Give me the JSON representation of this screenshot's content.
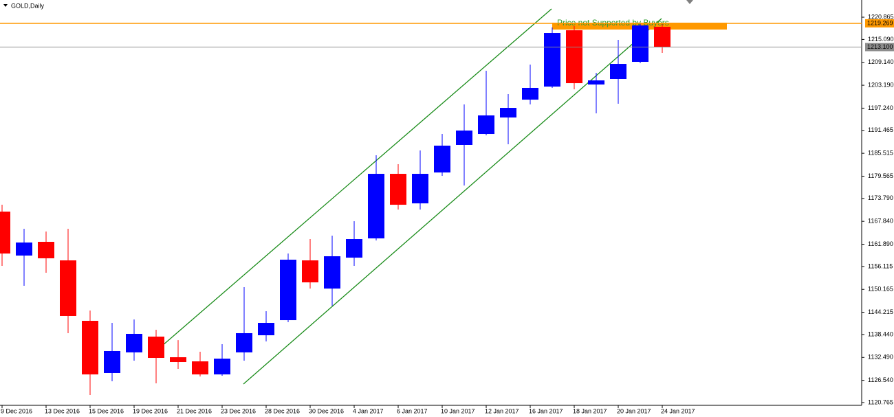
{
  "chart_data": {
    "type": "candlestick",
    "title": "GOLD,Daily",
    "annotation": "Price not Supported by Buyers",
    "categories": [
      "9 Dec 2016",
      null,
      "13 Dec 2016",
      null,
      "15 Dec 2016",
      null,
      "19 Dec 2016",
      null,
      "21 Dec 2016",
      null,
      "23 Dec 2016",
      null,
      "28 Dec 2016",
      null,
      "30 Dec 2016",
      null,
      "4 Jan 2017",
      null,
      "6 Jan 2017",
      null,
      "10 Jan 2017",
      null,
      "12 Jan 2017",
      null,
      "16 Jan 2017",
      null,
      "18 Jan 2017",
      null,
      "20 Jan 2017",
      null,
      "24 Jan 2017"
    ],
    "open": [
      1170.37,
      1158.95,
      1162.52,
      1157.7,
      1142.0,
      1128.44,
      1133.8,
      1137.9,
      1132.54,
      1131.47,
      1128.08,
      1133.8,
      1138.25,
      1142.17,
      1157.7,
      1150.38,
      1158.41,
      1163.41,
      1180.18,
      1172.51,
      1180.53,
      1187.68,
      1190.53,
      1194.81,
      1199.45,
      1202.84,
      1217.47,
      1203.38,
      1204.81,
      1209.27,
      1218.37
    ],
    "high": [
      1172.15,
      1165.91,
      1165.19,
      1165.91,
      1144.68,
      1141.46,
      1142.35,
      1139.68,
      1136.99,
      1133.97,
      1135.93,
      1150.74,
      1144.5,
      1159.48,
      1163.23,
      1164.12,
      1167.87,
      1185.0,
      1182.68,
      1186.25,
      1190.53,
      1198.2,
      1206.95,
      1200.88,
      1208.55,
      1218.19,
      1218.54,
      1206.41,
      1214.98,
      1219.26,
      1219.26
    ],
    "low": [
      1156.27,
      1151.1,
      1154.49,
      1138.79,
      1122.73,
      1126.3,
      1131.65,
      1125.76,
      1129.51,
      1127.54,
      1127.72,
      1131.65,
      1136.64,
      1141.64,
      1150.38,
      1145.92,
      1156.27,
      1162.88,
      1170.9,
      1170.9,
      1179.65,
      1177.15,
      1190.17,
      1187.86,
      1198.2,
      1202.49,
      1202.13,
      1195.88,
      1198.38,
      1208.91,
      1211.59
    ],
    "close": [
      1159.48,
      1162.34,
      1158.24,
      1143.25,
      1128.08,
      1134.15,
      1138.61,
      1132.36,
      1131.29,
      1128.08,
      1132.18,
      1138.79,
      1141.46,
      1157.88,
      1151.99,
      1158.77,
      1163.23,
      1180.18,
      1172.15,
      1180.18,
      1187.5,
      1191.42,
      1195.35,
      1197.31,
      1202.49,
      1216.76,
      1203.73,
      1204.45,
      1208.73,
      1218.72,
      1213.1
    ],
    "up_color": "#0000ff",
    "down_color": "#ff0000",
    "ylim": [
      1120.05,
      1225.33
    ],
    "yticks": [
      1120.765,
      {
        "value": 1126.54,
        "label": "1126.540"
      },
      {
        "value": 1132.49,
        "label": "1132.490"
      },
      {
        "value": 1138.44,
        "label": "1138.440"
      },
      1144.215,
      1150.165,
      1156.115,
      {
        "value": 1161.89,
        "label": "1161.890"
      },
      {
        "value": 1167.84,
        "label": "1167.840"
      },
      {
        "value": 1173.79,
        "label": "1173.790"
      },
      1179.565,
      1185.515,
      1191.465,
      {
        "value": 1197.24,
        "label": "1197.240"
      },
      {
        "value": 1203.19,
        "label": "1203.190"
      },
      {
        "value": 1209.14,
        "label": "1209.140"
      },
      {
        "value": 1215.09,
        "label": "1215.090"
      },
      1220.865
    ],
    "levels": [
      {
        "value": 1219.269,
        "color": "#ff9900"
      },
      {
        "value": 1213.1,
        "label": "1213.100",
        "color": "#8c8c8c"
      }
    ]
  }
}
